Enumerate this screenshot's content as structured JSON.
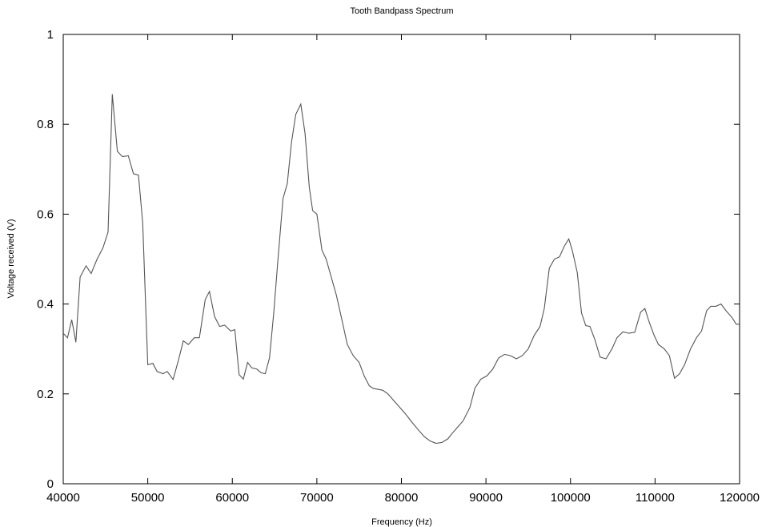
{
  "chart_data": {
    "type": "line",
    "title": "Tooth Bandpass Spectrum",
    "xlabel": "Frequency (Hz)",
    "ylabel": "Voltage received (V)",
    "xlim": [
      40000,
      120000
    ],
    "ylim": [
      0,
      1
    ],
    "x_ticks": [
      40000,
      50000,
      60000,
      70000,
      80000,
      90000,
      100000,
      110000,
      120000
    ],
    "x_tick_labels": [
      "40000",
      "50000",
      "60000",
      "70000",
      "80000",
      "90000",
      "100000",
      "110000",
      "120000"
    ],
    "y_ticks": [
      0,
      0.2,
      0.4,
      0.6,
      0.8,
      1
    ],
    "y_tick_labels": [
      "0",
      "0.2",
      "0.4",
      "0.6",
      "0.8",
      "1"
    ],
    "grid": false,
    "series": [
      {
        "color": "#555555",
        "x": [
          40000,
          40500,
          41000,
          41500,
          42000,
          42700,
          43300,
          44000,
          44700,
          45300,
          45800,
          46400,
          47000,
          47700,
          48300,
          48900,
          49400,
          50000,
          50600,
          51100,
          51800,
          52300,
          53000,
          53700,
          54200,
          54800,
          55500,
          56100,
          56800,
          57300,
          57900,
          58500,
          59100,
          59800,
          60300,
          60800,
          61300,
          61800,
          62300,
          62900,
          63400,
          63900,
          64400,
          64900,
          65400,
          66000,
          66500,
          67000,
          67500,
          68100,
          68600,
          69100,
          69500,
          70000,
          70600,
          71100,
          71700,
          72300,
          72900,
          73600,
          74300,
          75000,
          75600,
          76200,
          76700,
          77300,
          77800,
          78400,
          79100,
          79800,
          80500,
          81200,
          82000,
          82700,
          83400,
          84100,
          84800,
          85500,
          86000,
          86600,
          87300,
          88100,
          88700,
          89400,
          90100,
          90800,
          91500,
          92200,
          92900,
          93600,
          94300,
          95000,
          95700,
          96400,
          96900,
          97500,
          98100,
          98700,
          99300,
          99800,
          100200,
          100800,
          101300,
          101800,
          102300,
          102900,
          103500,
          104200,
          104900,
          105500,
          106200,
          106900,
          107600,
          108300,
          108800,
          109300,
          109900,
          110400,
          111100,
          111700,
          112300,
          112900,
          113500,
          114200,
          114900,
          115500,
          116100,
          116600,
          117200,
          117800,
          118400,
          119100,
          119600,
          120000
        ],
        "y": [
          0.335,
          0.325,
          0.365,
          0.315,
          0.46,
          0.485,
          0.468,
          0.5,
          0.525,
          0.56,
          0.867,
          0.74,
          0.728,
          0.73,
          0.69,
          0.687,
          0.58,
          0.265,
          0.268,
          0.25,
          0.245,
          0.25,
          0.232,
          0.28,
          0.318,
          0.31,
          0.325,
          0.325,
          0.41,
          0.428,
          0.372,
          0.35,
          0.353,
          0.34,
          0.343,
          0.243,
          0.233,
          0.27,
          0.258,
          0.255,
          0.247,
          0.245,
          0.28,
          0.38,
          0.5,
          0.635,
          0.668,
          0.76,
          0.822,
          0.845,
          0.78,
          0.66,
          0.608,
          0.6,
          0.52,
          0.5,
          0.46,
          0.42,
          0.37,
          0.31,
          0.285,
          0.27,
          0.24,
          0.218,
          0.212,
          0.21,
          0.208,
          0.2,
          0.185,
          0.17,
          0.155,
          0.138,
          0.12,
          0.105,
          0.095,
          0.09,
          0.092,
          0.1,
          0.112,
          0.125,
          0.14,
          0.17,
          0.213,
          0.233,
          0.24,
          0.255,
          0.28,
          0.288,
          0.285,
          0.278,
          0.285,
          0.3,
          0.33,
          0.35,
          0.39,
          0.48,
          0.5,
          0.505,
          0.53,
          0.545,
          0.52,
          0.47,
          0.38,
          0.352,
          0.35,
          0.32,
          0.282,
          0.278,
          0.3,
          0.325,
          0.338,
          0.335,
          0.337,
          0.382,
          0.39,
          0.36,
          0.33,
          0.31,
          0.3,
          0.285,
          0.235,
          0.245,
          0.265,
          0.3,
          0.325,
          0.34,
          0.385,
          0.395,
          0.395,
          0.4,
          0.385,
          0.37,
          0.355,
          0.355
        ]
      }
    ]
  }
}
